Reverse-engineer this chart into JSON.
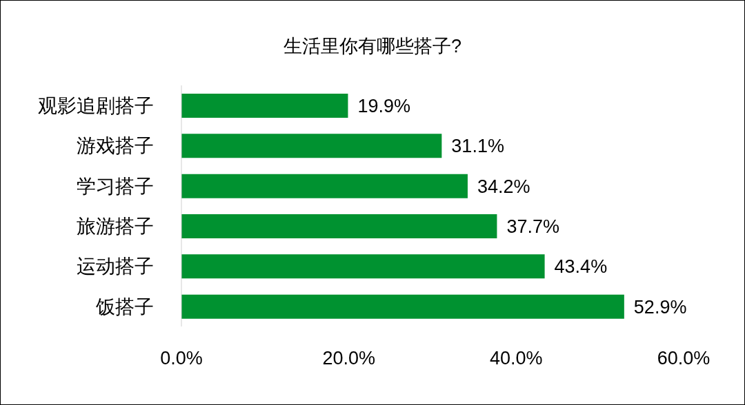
{
  "chart_data": {
    "type": "bar",
    "orientation": "horizontal",
    "title": "生活里你有哪些搭子?",
    "categories": [
      "观影追剧搭子",
      "游戏搭子",
      "学习搭子",
      "旅游搭子",
      "运动搭子",
      "饭搭子"
    ],
    "values": [
      19.9,
      31.1,
      34.2,
      37.7,
      43.4,
      52.9
    ],
    "value_labels": [
      "19.9%",
      "31.1%",
      "34.2%",
      "37.7%",
      "43.4%",
      "52.9%"
    ],
    "color": "#009230",
    "xlim": [
      0,
      60
    ],
    "xticks": [
      {
        "value": 0,
        "label": "0.0%"
      },
      {
        "value": 20,
        "label": "20.0%"
      },
      {
        "value": 40,
        "label": "40.0%"
      },
      {
        "value": 60,
        "label": "60.0%"
      }
    ],
    "grid": false,
    "legend": false
  }
}
